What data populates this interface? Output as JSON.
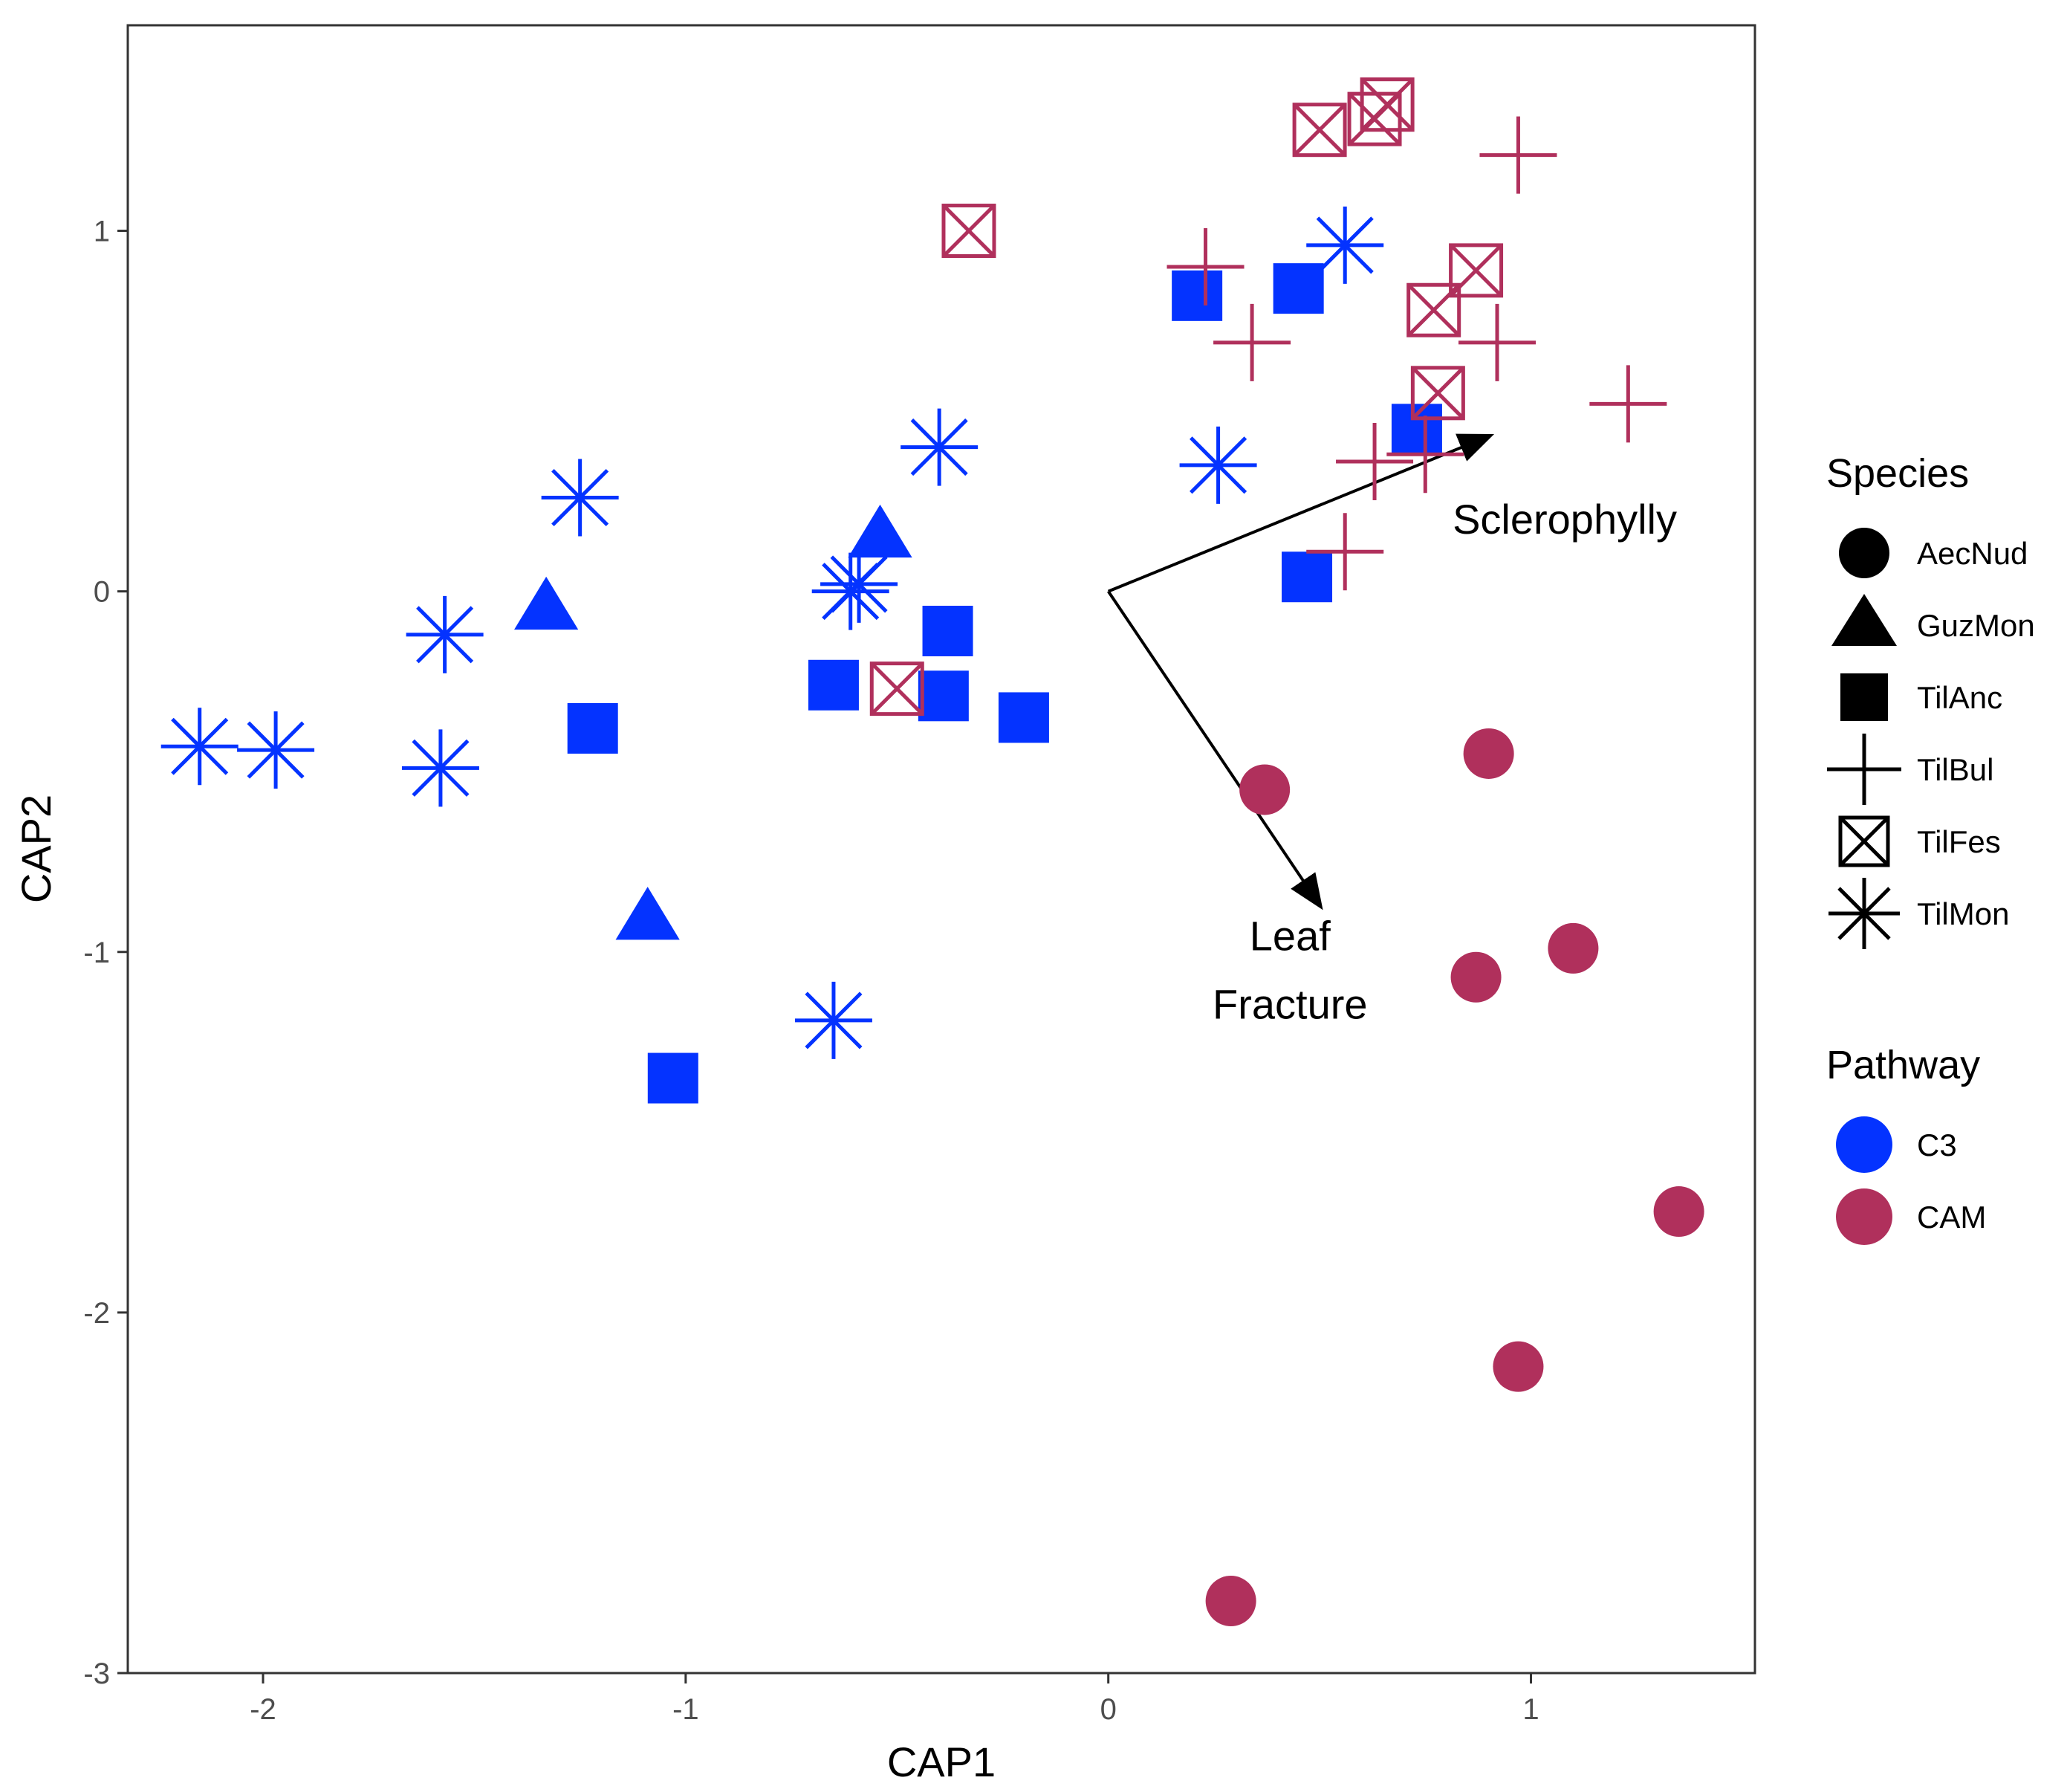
{
  "colors": {
    "C3": "#0433ff",
    "CAM": "#b0305c",
    "panel_border": "#333333",
    "tick": "#333333"
  },
  "chart_data": {
    "type": "scatter",
    "title": "",
    "xlabel": "CAP1",
    "ylabel": "CAP2",
    "xlim": [
      -2.32,
      1.53
    ],
    "ylim": [
      -3.0,
      1.57
    ],
    "xticks": [
      -2,
      -1,
      0,
      1
    ],
    "yticks": [
      1,
      0,
      -1,
      -2,
      -3
    ],
    "grid": false,
    "legend_position": "right",
    "legend": {
      "species": {
        "title": "Species",
        "entries": [
          {
            "label": "AecNud",
            "shape": "circle"
          },
          {
            "label": "GuzMon",
            "shape": "triangle"
          },
          {
            "label": "TilAnc",
            "shape": "square"
          },
          {
            "label": "TilBul",
            "shape": "plus"
          },
          {
            "label": "TilFes",
            "shape": "boxx"
          },
          {
            "label": "TilMon",
            "shape": "asterisk"
          }
        ]
      },
      "pathway": {
        "title": "Pathway",
        "entries": [
          {
            "label": "C3",
            "color": "#0433ff"
          },
          {
            "label": "CAM",
            "color": "#b0305c"
          }
        ]
      }
    },
    "vectors": [
      {
        "label_lines": [
          "Sclerophylly"
        ],
        "x0": 0,
        "y0": 0,
        "x1": 0.9,
        "y1": 0.43,
        "label_x": 1.08,
        "label_y": 0.16
      },
      {
        "label_lines": [
          "Leaf",
          "Fracture"
        ],
        "x0": 0,
        "y0": 0,
        "x1": 0.5,
        "y1": -0.87,
        "label_x": 0.43,
        "label_y": -1.09
      }
    ],
    "series": [
      {
        "name": "TilMon",
        "shape": "asterisk",
        "pathway": "C3",
        "points": [
          [
            -2.15,
            -0.43
          ],
          [
            -1.97,
            -0.44
          ],
          [
            -1.57,
            -0.12
          ],
          [
            -1.58,
            -0.49
          ],
          [
            -1.25,
            0.26
          ],
          [
            -0.61,
            0.0
          ],
          [
            -0.59,
            0.02
          ],
          [
            -0.4,
            0.4
          ],
          [
            -0.65,
            -1.19
          ],
          [
            0.26,
            0.35
          ],
          [
            0.56,
            0.96
          ]
        ]
      },
      {
        "name": "TilAnc",
        "shape": "square",
        "pathway": "C3",
        "points": [
          [
            -1.22,
            -0.38
          ],
          [
            -0.65,
            -0.26
          ],
          [
            -0.38,
            -0.11
          ],
          [
            -0.39,
            -0.29
          ],
          [
            -0.2,
            -0.35
          ],
          [
            -1.03,
            -1.35
          ],
          [
            0.21,
            0.82
          ],
          [
            0.45,
            0.84
          ],
          [
            0.73,
            0.45
          ],
          [
            0.47,
            0.04
          ]
        ]
      },
      {
        "name": "GuzMon",
        "shape": "triangle",
        "pathway": "C3",
        "points": [
          [
            -1.33,
            -0.05
          ],
          [
            -0.54,
            0.15
          ],
          [
            -1.09,
            -0.91
          ]
        ]
      },
      {
        "name": "TilFes",
        "shape": "boxx",
        "pathway": "CAM",
        "points": [
          [
            -0.33,
            1.0
          ],
          [
            -0.5,
            -0.27
          ],
          [
            0.5,
            1.28
          ],
          [
            0.63,
            1.31
          ],
          [
            0.66,
            1.35
          ],
          [
            0.87,
            0.89
          ],
          [
            0.77,
            0.78
          ],
          [
            0.78,
            0.55
          ]
        ]
      },
      {
        "name": "TilBul",
        "shape": "plus",
        "pathway": "CAM",
        "points": [
          [
            0.23,
            0.9
          ],
          [
            0.34,
            0.69
          ],
          [
            0.63,
            0.36
          ],
          [
            0.75,
            0.38
          ],
          [
            0.56,
            0.11
          ],
          [
            0.92,
            0.69
          ],
          [
            0.97,
            1.21
          ],
          [
            1.23,
            0.52
          ]
        ]
      },
      {
        "name": "AecNud",
        "shape": "circle",
        "pathway": "CAM",
        "points": [
          [
            0.37,
            -0.55
          ],
          [
            0.9,
            -0.45
          ],
          [
            0.87,
            -1.07
          ],
          [
            1.1,
            -0.99
          ],
          [
            1.35,
            -1.72
          ],
          [
            0.97,
            -2.15
          ],
          [
            0.29,
            -2.8
          ]
        ]
      }
    ]
  }
}
